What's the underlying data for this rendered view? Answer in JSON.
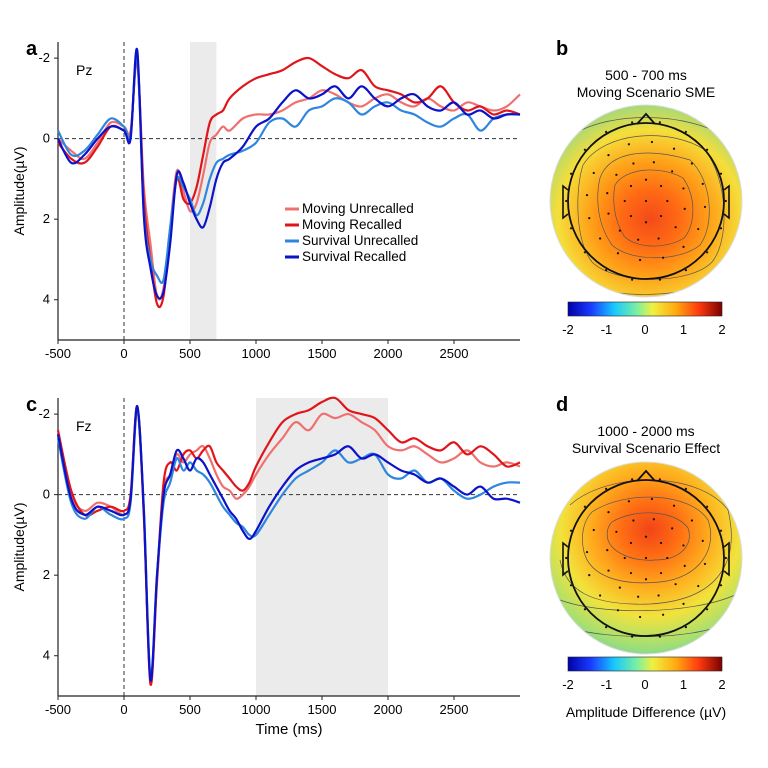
{
  "panel_labels": {
    "a": "a",
    "b": "b",
    "c": "c",
    "d": "d"
  },
  "colors": {
    "moving_unrecalled": "#f07070",
    "moving_recalled": "#e0151a",
    "survival_unrecalled": "#2f86df",
    "survival_recalled": "#0b12c8",
    "shade": "#ebebeb"
  },
  "chart_data": [
    {
      "type": "line",
      "panel": "a",
      "channel": "Pz",
      "xlabel": "",
      "ylabel": "Amplitude(µV)",
      "xlim": [
        -500,
        3000
      ],
      "ylim": [
        -2.4,
        5.0
      ],
      "y_inverted": true,
      "x_ticks": [
        -500,
        0,
        500,
        1000,
        1500,
        2000,
        2500
      ],
      "y_ticks": [
        -2,
        0,
        2,
        4
      ],
      "shaded_window": [
        500,
        700
      ],
      "onset_line_x": 0,
      "zero_line_y": 0,
      "legend_position": "middle-right",
      "series": [
        {
          "name": "Moving Unrecalled",
          "color_key": "moving_unrecalled",
          "x": [
            -500,
            -400,
            -300,
            -200,
            -100,
            0,
            50,
            100,
            150,
            200,
            250,
            300,
            350,
            400,
            450,
            500,
            550,
            600,
            650,
            700,
            750,
            800,
            900,
            1000,
            1100,
            1200,
            1300,
            1400,
            1500,
            1600,
            1700,
            1800,
            1900,
            2000,
            2100,
            2200,
            2300,
            2400,
            2500,
            2600,
            2700,
            2800,
            2900,
            3000
          ],
          "y": [
            0,
            0.3,
            0.5,
            0.1,
            -0.4,
            -0.3,
            -0.2,
            -1.9,
            1.2,
            2.6,
            3.9,
            3.7,
            2.2,
            0.8,
            1.3,
            1.8,
            1.6,
            0.9,
            0.1,
            -0.1,
            -0.3,
            -0.2,
            -0.5,
            -0.6,
            -0.6,
            -0.7,
            -0.9,
            -1.0,
            -1.2,
            -1.1,
            -0.9,
            -0.8,
            -1.0,
            -1.1,
            -0.9,
            -0.8,
            -1.0,
            -0.8,
            -0.7,
            -0.9,
            -0.8,
            -0.7,
            -0.8,
            -1.1
          ]
        },
        {
          "name": "Moving Recalled",
          "color_key": "moving_recalled",
          "x": [
            -500,
            -400,
            -300,
            -200,
            -100,
            0,
            50,
            100,
            150,
            200,
            250,
            300,
            350,
            400,
            450,
            500,
            550,
            600,
            650,
            700,
            750,
            800,
            900,
            1000,
            1100,
            1200,
            1300,
            1400,
            1500,
            1600,
            1700,
            1800,
            1900,
            2000,
            2100,
            2200,
            2300,
            2400,
            2500,
            2600,
            2700,
            2800,
            2900,
            3000
          ],
          "y": [
            0.1,
            0.5,
            0.6,
            0.2,
            -0.3,
            -0.2,
            -0.1,
            -2.0,
            1.5,
            3.0,
            4.1,
            3.9,
            2.3,
            1.0,
            1.5,
            1.6,
            1.2,
            0.4,
            -0.4,
            -0.6,
            -0.7,
            -1.0,
            -1.3,
            -1.5,
            -1.6,
            -1.7,
            -1.9,
            -2.0,
            -1.8,
            -1.6,
            -1.5,
            -1.7,
            -1.3,
            -1.2,
            -1.1,
            -0.9,
            -1.0,
            -1.3,
            -0.9,
            -0.7,
            -0.8,
            -0.6,
            -0.7,
            -0.6
          ]
        },
        {
          "name": "Survival Unrecalled",
          "color_key": "survival_unrecalled",
          "x": [
            -500,
            -400,
            -300,
            -200,
            -100,
            0,
            50,
            100,
            150,
            200,
            250,
            300,
            350,
            400,
            450,
            500,
            550,
            600,
            650,
            700,
            750,
            800,
            900,
            1000,
            1100,
            1200,
            1300,
            1400,
            1500,
            1600,
            1700,
            1800,
            1900,
            2000,
            2100,
            2200,
            2300,
            2400,
            2500,
            2600,
            2700,
            2800,
            2900,
            3000
          ],
          "y": [
            -0.2,
            0.4,
            0.3,
            -0.1,
            -0.5,
            -0.3,
            -0.1,
            -2.0,
            1.8,
            3.0,
            3.4,
            3.5,
            2.2,
            1.0,
            1.2,
            1.5,
            1.9,
            1.6,
            1.0,
            0.6,
            0.5,
            0.4,
            0.3,
            0.1,
            -0.4,
            -0.5,
            -0.3,
            -0.7,
            -0.8,
            -1.0,
            -0.9,
            -0.6,
            -0.8,
            -0.9,
            -0.7,
            -0.6,
            -0.4,
            -0.3,
            -0.5,
            -0.6,
            -0.2,
            -0.5,
            -0.6,
            -0.6
          ]
        },
        {
          "name": "Survival Recalled",
          "color_key": "survival_recalled",
          "x": [
            -500,
            -400,
            -300,
            -200,
            -100,
            0,
            50,
            100,
            150,
            200,
            250,
            300,
            350,
            400,
            450,
            500,
            550,
            600,
            650,
            700,
            750,
            800,
            900,
            1000,
            1100,
            1200,
            1300,
            1400,
            1500,
            1600,
            1700,
            1800,
            1900,
            2000,
            2100,
            2200,
            2300,
            2400,
            2500,
            2600,
            2700,
            2800,
            2900,
            3000
          ],
          "y": [
            0,
            0.6,
            0.4,
            0,
            -0.3,
            -0.2,
            0,
            -2.2,
            1.9,
            3.2,
            3.9,
            3.8,
            2.6,
            0.9,
            1.1,
            1.6,
            2.0,
            2.2,
            1.7,
            1.0,
            0.6,
            0.5,
            0.2,
            -0.3,
            -0.5,
            -0.9,
            -1.2,
            -1.0,
            -1.1,
            -1.3,
            -1.0,
            -1.3,
            -1.0,
            -0.8,
            -1.0,
            -1.1,
            -0.8,
            -0.7,
            -0.9,
            -0.6,
            -0.7,
            -0.5,
            -0.6,
            -0.6
          ]
        }
      ]
    },
    {
      "type": "line",
      "panel": "c",
      "channel": "Fz",
      "xlabel": "Time (ms)",
      "ylabel": "Amplitude(µV)",
      "xlim": [
        -500,
        3000
      ],
      "ylim": [
        -2.4,
        5.0
      ],
      "y_inverted": true,
      "x_ticks": [
        -500,
        0,
        500,
        1000,
        1500,
        2000,
        2500
      ],
      "y_ticks": [
        -2,
        0,
        2,
        4
      ],
      "shaded_window": [
        1000,
        2000
      ],
      "onset_line_x": 0,
      "zero_line_y": 0,
      "series": [
        {
          "name": "Moving Unrecalled",
          "color_key": "moving_unrecalled",
          "x": [
            -500,
            -400,
            -300,
            -200,
            -100,
            0,
            50,
            100,
            150,
            200,
            250,
            300,
            350,
            400,
            450,
            500,
            550,
            600,
            650,
            700,
            750,
            800,
            850,
            900,
            950,
            1000,
            1100,
            1200,
            1300,
            1400,
            1500,
            1600,
            1700,
            1800,
            1900,
            2000,
            2100,
            2200,
            2300,
            2400,
            2500,
            2600,
            2700,
            2800,
            2900,
            3000
          ],
          "y": [
            -1.5,
            0,
            0.4,
            0.2,
            0.3,
            0.5,
            0.1,
            -2.1,
            0.4,
            4.6,
            2.2,
            -0.1,
            -0.5,
            -1.0,
            -0.8,
            -1.0,
            -1.1,
            -1.2,
            -0.9,
            -0.5,
            -0.2,
            -0.1,
            0.1,
            0,
            -0.2,
            -0.5,
            -1.0,
            -1.4,
            -1.8,
            -1.6,
            -2.0,
            -1.9,
            -2.0,
            -1.8,
            -1.6,
            -1.2,
            -1.1,
            -1.2,
            -1.0,
            -0.8,
            -0.9,
            -1.1,
            -0.8,
            -0.7,
            -0.8,
            -0.7
          ]
        },
        {
          "name": "Moving Recalled",
          "color_key": "moving_recalled",
          "x": [
            -500,
            -400,
            -300,
            -200,
            -100,
            0,
            50,
            100,
            150,
            200,
            250,
            300,
            350,
            400,
            450,
            500,
            550,
            600,
            650,
            700,
            750,
            800,
            850,
            900,
            950,
            1000,
            1100,
            1200,
            1300,
            1400,
            1500,
            1600,
            1700,
            1800,
            1900,
            2000,
            2100,
            2200,
            2300,
            2400,
            2500,
            2600,
            2700,
            2800,
            2900,
            3000
          ],
          "y": [
            -1.6,
            -0.1,
            0.5,
            0.4,
            0.3,
            0.4,
            0,
            -2.2,
            0.5,
            4.7,
            2.1,
            -0.3,
            -0.8,
            -0.6,
            -1.0,
            -1.1,
            -0.9,
            -1.1,
            -1.2,
            -0.8,
            -0.6,
            -0.4,
            -0.2,
            -0.1,
            -0.3,
            -0.7,
            -1.3,
            -1.8,
            -2.0,
            -2.1,
            -2.3,
            -2.4,
            -2.1,
            -2.0,
            -1.9,
            -1.6,
            -1.3,
            -1.4,
            -1.2,
            -1.1,
            -1.3,
            -1.0,
            -1.2,
            -1.0,
            -0.7,
            -0.8
          ]
        },
        {
          "name": "Survival Unrecalled",
          "color_key": "survival_unrecalled",
          "x": [
            -500,
            -400,
            -300,
            -200,
            -100,
            0,
            50,
            100,
            150,
            200,
            250,
            300,
            350,
            400,
            450,
            500,
            550,
            600,
            650,
            700,
            750,
            800,
            850,
            900,
            950,
            1000,
            1100,
            1200,
            1300,
            1400,
            1500,
            1600,
            1700,
            1800,
            1900,
            2000,
            2100,
            2200,
            2300,
            2400,
            2500,
            2600,
            2700,
            2800,
            2900,
            3000
          ],
          "y": [
            -1.4,
            0.2,
            0.6,
            0.3,
            0.5,
            0.6,
            0.2,
            -2.1,
            0.3,
            4.5,
            2.0,
            0.2,
            -0.3,
            -0.9,
            -0.6,
            -0.8,
            -0.6,
            -0.5,
            -0.3,
            0,
            0.3,
            0.5,
            0.7,
            0.8,
            1.0,
            1.0,
            0.5,
            0,
            -0.4,
            -0.6,
            -0.8,
            -1.1,
            -0.8,
            -0.9,
            -1.0,
            -0.5,
            -0.4,
            -0.6,
            -0.3,
            -0.4,
            -0.1,
            0.1,
            0,
            -0.2,
            -0.3,
            -0.3
          ]
        },
        {
          "name": "Survival Recalled",
          "color_key": "survival_recalled",
          "x": [
            -500,
            -400,
            -300,
            -200,
            -100,
            0,
            50,
            100,
            150,
            200,
            250,
            300,
            350,
            400,
            450,
            500,
            550,
            600,
            650,
            700,
            750,
            800,
            850,
            900,
            950,
            1000,
            1100,
            1200,
            1300,
            1400,
            1500,
            1600,
            1700,
            1800,
            1900,
            2000,
            2100,
            2200,
            2300,
            2400,
            2500,
            2600,
            2700,
            2800,
            2900,
            3000
          ],
          "y": [
            -1.5,
            0.1,
            0.5,
            0.3,
            0.4,
            0.5,
            0.1,
            -2.2,
            0.4,
            4.6,
            2.0,
            0,
            -0.5,
            -1.1,
            -0.9,
            -0.6,
            -0.9,
            -0.8,
            -0.5,
            -0.2,
            0.1,
            0.4,
            0.6,
            0.9,
            1.1,
            0.9,
            0.3,
            -0.2,
            -0.6,
            -0.8,
            -0.9,
            -1.0,
            -1.2,
            -0.9,
            -1.0,
            -0.8,
            -0.6,
            -0.5,
            -0.3,
            -0.4,
            -0.2,
            0,
            -0.2,
            0.1,
            0.1,
            0.2
          ]
        }
      ]
    },
    {
      "type": "heatmap",
      "panel": "b",
      "title": "500 - 700 ms",
      "subtitle": "Moving Scenario SME",
      "colorbar_ticks": [
        -2,
        -1,
        0,
        1,
        2
      ],
      "colorbar_range": [
        -2,
        2
      ],
      "value_range": [
        0,
        1.5
      ],
      "peak_location": "centro-parietal"
    },
    {
      "type": "heatmap",
      "panel": "d",
      "title": "1000 - 2000 ms",
      "subtitle": "Survival Scenario Effect",
      "colorbar_ticks": [
        -2,
        -1,
        0,
        1,
        2
      ],
      "colorbar_range": [
        -2,
        2
      ],
      "colorbar_label": "Amplitude Difference (µV)",
      "value_range": [
        0,
        1.6
      ],
      "peak_location": "fronto-central"
    }
  ]
}
